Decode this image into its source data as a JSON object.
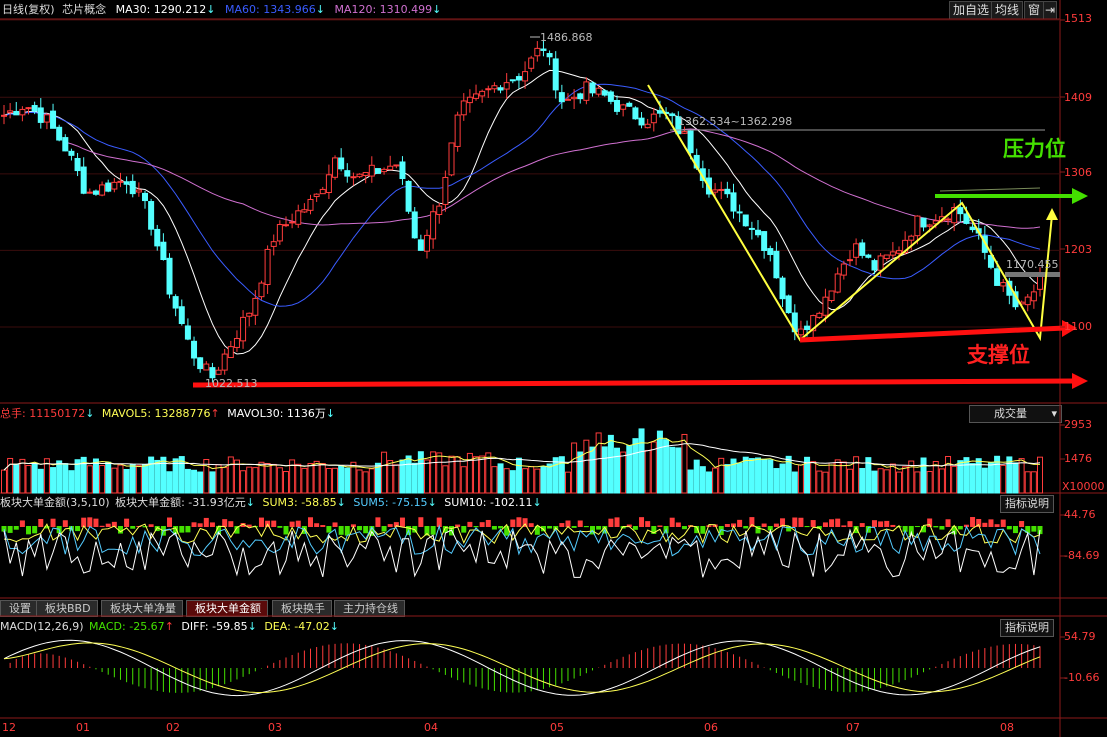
{
  "header": {
    "period": "日线(复权)",
    "symbol": "芯片概念",
    "ma30": "MA30: 1290.212",
    "ma60": "MA60: 1343.966",
    "ma120": "MA120: 1310.499",
    "btn_add": "加自选",
    "btn_avg": "均线",
    "btn_window": "窗"
  },
  "price_axis": [
    "1513",
    "1409",
    "1306",
    "1203",
    "1100"
  ],
  "annotations": {
    "high": "1486.868",
    "low": "1022.513",
    "range": "1362.534~1362.298",
    "recent": "1170.455",
    "pressure": "压力位",
    "support": "支撑位"
  },
  "volume": {
    "legend_total": "总手: 11150172",
    "legend_mavol5": "MAVOL5: 13288776",
    "legend_mavol30": "MAVOL30: 1136万",
    "select": "成交量",
    "axis": [
      "2953",
      "1476"
    ],
    "unit": "X10000"
  },
  "bigorder": {
    "legend_title": "板块大单金额(3,5,10)",
    "legend_value": "板块大单金额: -31.93亿元",
    "sum3": "SUM3: -58.85",
    "sum5": "SUM5: -75.15",
    "sum10": "SUM10: -102.11",
    "help": "指标说明",
    "axis": [
      "44.76",
      "-84.69"
    ]
  },
  "tabs": [
    "设置",
    "板块BBD",
    "板块大单净量",
    "板块大单金额",
    "板块换手",
    "主力持仓线"
  ],
  "macd": {
    "legend": "MACD(12,26,9)",
    "macd": "MACD: -25.67",
    "diff": "DIFF: -59.85",
    "dea": "DEA: -47.02",
    "help": "指标说明",
    "axis": [
      "54.79",
      "-10.66"
    ]
  },
  "months": [
    "12",
    "01",
    "02",
    "03",
    "04",
    "05",
    "06",
    "07",
    "08"
  ],
  "colors": {
    "up": "#ff3c3c",
    "down": "#54ffff",
    "ma30": "#ffffff",
    "ma60": "#3a5cff",
    "ma120": "#d070d0",
    "volma": "#ffff55",
    "pressure": "#44e000",
    "support": "#ff1010",
    "trend": "#ffff40"
  },
  "chart_data": [
    {
      "type": "candlestick",
      "title": "芯片概念 日线(复权)",
      "ylim": [
        1000,
        1513
      ],
      "y_ticks": [
        1513,
        1409,
        1306,
        1203,
        1100
      ],
      "x_ticks": [
        "12",
        "01",
        "02",
        "03",
        "04",
        "05",
        "06",
        "07",
        "08"
      ],
      "close_path": [
        1385,
        1400,
        1380,
        1340,
        1280,
        1290,
        1300,
        1250,
        1150,
        1070,
        1030,
        1080,
        1130,
        1220,
        1250,
        1270,
        1330,
        1300,
        1310,
        1320,
        1200,
        1270,
        1390,
        1410,
        1430,
        1440,
        1480,
        1400,
        1420,
        1410,
        1390,
        1380,
        1385,
        1350,
        1290,
        1270,
        1240,
        1200,
        1100,
        1110,
        1160,
        1210,
        1180,
        1200,
        1240,
        1250,
        1260,
        1220,
        1160,
        1120,
        1160
      ],
      "high": 1486.868,
      "low": 1022.513,
      "series": [
        {
          "name": "MA30",
          "last": 1290.212
        },
        {
          "name": "MA60",
          "last": 1343.966
        },
        {
          "name": "MA120",
          "last": 1310.499
        }
      ]
    },
    {
      "type": "bar",
      "title": "成交量",
      "ylim": [
        0,
        2953
      ],
      "series": [
        {
          "name": "MAVOL5",
          "last": 13288776
        },
        {
          "name": "MAVOL30",
          "last": 11360000
        }
      ]
    },
    {
      "type": "bar",
      "title": "板块大单金额(3,5,10)",
      "ylim": [
        -84.69,
        44.76
      ],
      "series": [
        {
          "name": "SUM3",
          "last": -58.85
        },
        {
          "name": "SUM5",
          "last": -75.15
        },
        {
          "name": "SUM10",
          "last": -102.11
        }
      ]
    },
    {
      "type": "bar",
      "title": "MACD(12,26,9)",
      "ylim": [
        -10.66,
        54.79
      ],
      "series": [
        {
          "name": "MACD",
          "last": -25.67
        },
        {
          "name": "DIFF",
          "last": -59.85
        },
        {
          "name": "DEA",
          "last": -47.02
        }
      ]
    }
  ]
}
